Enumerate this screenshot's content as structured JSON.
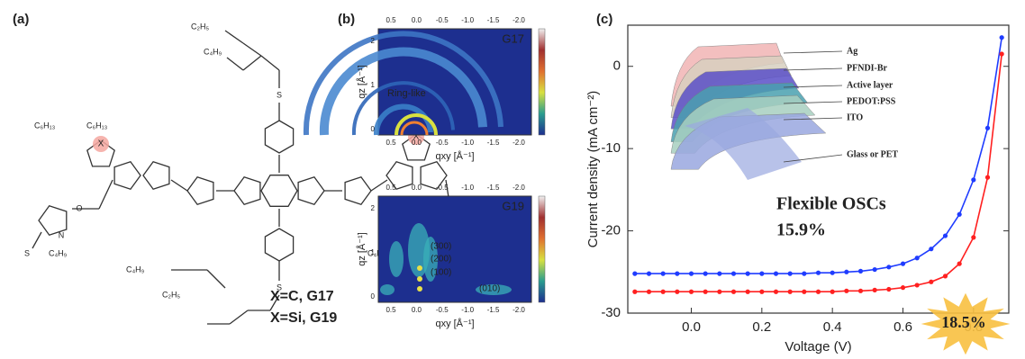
{
  "panel_a": {
    "label": "(a)",
    "substituents": [
      "C₂H₅",
      "C₄H₉",
      "C₆H₁₃",
      "C₆H₁₃",
      "C₆H₁₃",
      "C₆H₁₃",
      "C₄H₉",
      "C₄H₉",
      "C₄H₉",
      "C₂H₅"
    ],
    "atom_x": "X",
    "atom_s": "S",
    "atom_n": "N",
    "atom_o": "O",
    "legend": [
      "X=C, G17",
      "X=Si, G19"
    ]
  },
  "panel_b": {
    "label": "(b)",
    "x_axis_label": "qxy [Å⁻¹]",
    "y_axis_label": "qz [Å⁻¹]",
    "x_tick_labels": [
      "0.5",
      "0.0",
      "-0.5",
      "-1.0",
      "-1.5",
      "-2.0"
    ],
    "y_tick_labels": [
      "2",
      "1",
      "0"
    ],
    "maps": [
      {
        "name": "G17",
        "annotations": [
          "Ring-like"
        ]
      },
      {
        "name": "G19",
        "annotations": [
          "(300)",
          "(200)",
          "(100)",
          "(010)"
        ]
      }
    ]
  },
  "chart_data": {
    "type": "line",
    "panel_label": "(c)",
    "x_label": "Voltage (V)",
    "y_label": "Current density (mA cm⁻²)",
    "x": [
      -0.16,
      -0.12,
      -0.08,
      -0.04,
      0,
      0.04,
      0.08,
      0.12,
      0.16,
      0.2,
      0.24,
      0.28,
      0.32,
      0.36,
      0.4,
      0.44,
      0.48,
      0.52,
      0.56,
      0.6,
      0.64,
      0.68,
      0.72,
      0.76,
      0.8,
      0.84,
      0.88
    ],
    "series": [
      {
        "color": "#1f3cff",
        "values": [
          -25.2,
          -25.2,
          -25.2,
          -25.2,
          -25.2,
          -25.2,
          -25.2,
          -25.2,
          -25.2,
          -25.2,
          -25.2,
          -25.2,
          -25.2,
          -25.1,
          -25.1,
          -25.0,
          -24.9,
          -24.7,
          -24.4,
          -24.0,
          -23.3,
          -22.2,
          -20.6,
          -18.0,
          -13.8,
          -7.5,
          3.5
        ]
      },
      {
        "color": "#ff2020",
        "values": [
          -27.4,
          -27.4,
          -27.4,
          -27.4,
          -27.4,
          -27.4,
          -27.4,
          -27.4,
          -27.4,
          -27.4,
          -27.4,
          -27.4,
          -27.4,
          -27.4,
          -27.4,
          -27.3,
          -27.3,
          -27.2,
          -27.1,
          -26.9,
          -26.6,
          -26.2,
          -25.5,
          -24.0,
          -20.8,
          -13.5,
          1.5
        ]
      }
    ],
    "xlim": [
      -0.18,
      0.9
    ],
    "ylim": [
      -30,
      5
    ],
    "xticks": [
      {
        "value": 0,
        "label": "0.0"
      },
      0.2,
      0.4,
      0.6,
      0.8
    ],
    "yticks": [
      -30,
      -20,
      -10,
      0
    ],
    "annotations": [
      "Flexible OSCs",
      "15.9%",
      "18.5%"
    ],
    "inset_labels": [
      "Ag",
      "PFNDI-Br",
      "Active layer",
      "PEDOT:PSS",
      "ITO",
      "Glass or PET"
    ]
  }
}
